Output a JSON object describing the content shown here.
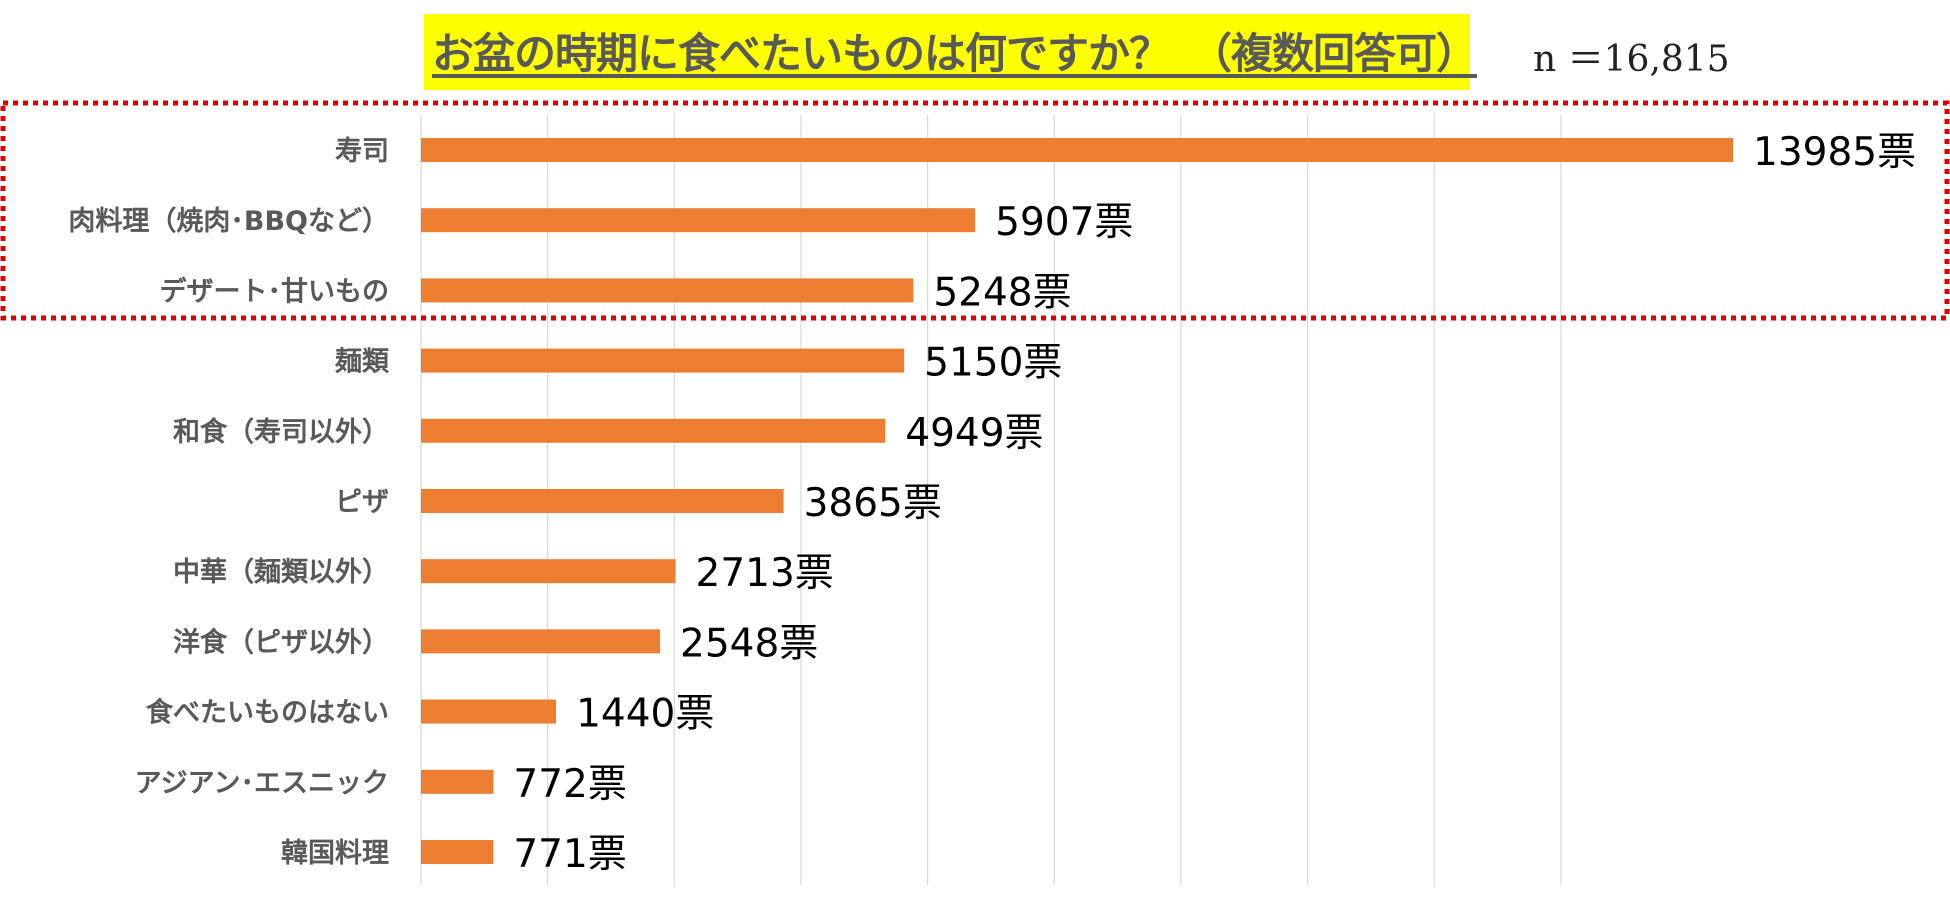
{
  "chart_data": {
    "type": "bar",
    "orientation": "horizontal",
    "title": "お盆の時期に食べたいものは何ですか？　（複数回答可）",
    "sample_size": "n ＝16,815",
    "unit_suffix": "票",
    "categories": [
      "寿司",
      "肉料理（焼肉･BBQなど）",
      "デザート･甘いもの",
      "麺類",
      "和食（寿司以外）",
      "ピザ",
      "中華（麺類以外）",
      "洋食（ピザ以外）",
      "食べたいものはない",
      "アジアン･エスニック",
      "韓国料理"
    ],
    "values": [
      13985,
      5907,
      5248,
      5150,
      4949,
      3865,
      2713,
      2548,
      1440,
      772,
      771
    ],
    "value_labels": [
      "13985票",
      "5907票",
      "5248票",
      "5150票",
      "4949票",
      "3865票",
      "2713票",
      "2548票",
      "1440票",
      "772票",
      "771票"
    ],
    "xlim": [
      0,
      15000
    ],
    "grid": true,
    "highlight": {
      "categories": [
        "寿司",
        "肉料理（焼肉･BBQなど）",
        "デザート･甘いもの"
      ],
      "style": "red dotted box"
    },
    "bar_color": "#ed7d31",
    "highlight_color": "#e00000",
    "grid_color": "#d9d9d9"
  }
}
